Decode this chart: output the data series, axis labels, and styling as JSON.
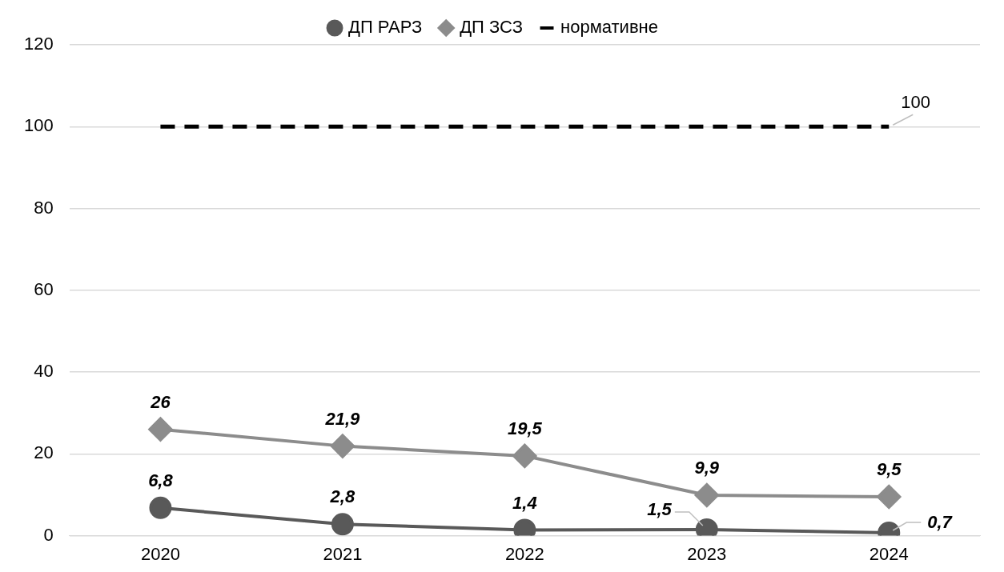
{
  "chart_data": {
    "type": "line",
    "categories": [
      "2020",
      "2021",
      "2022",
      "2023",
      "2024"
    ],
    "series": [
      {
        "name": "ДП РАРЗ",
        "color": "#595959",
        "marker": "circle",
        "line_style": "solid",
        "values": [
          6.8,
          2.8,
          1.4,
          1.5,
          0.7
        ],
        "value_labels": [
          "6,8",
          "2,8",
          "1,4",
          "1,5",
          "0,7"
        ]
      },
      {
        "name": "ДП ЗСЗ",
        "color": "#8c8c8c",
        "marker": "diamond",
        "line_style": "solid",
        "values": [
          26,
          21.9,
          19.5,
          9.9,
          9.5
        ],
        "value_labels": [
          "26",
          "21,9",
          "19,5",
          "9,9",
          "9,5"
        ]
      },
      {
        "name": "нормативне",
        "color": "#000000",
        "marker": "none",
        "line_style": "dashed",
        "values": [
          100,
          100,
          100,
          100,
          100
        ],
        "value_labels": [
          null,
          null,
          null,
          null,
          "100"
        ]
      }
    ],
    "ylim": [
      0,
      120
    ],
    "yticks": [
      0,
      20,
      40,
      60,
      80,
      100,
      120
    ],
    "grid": "y",
    "legend": "top"
  }
}
